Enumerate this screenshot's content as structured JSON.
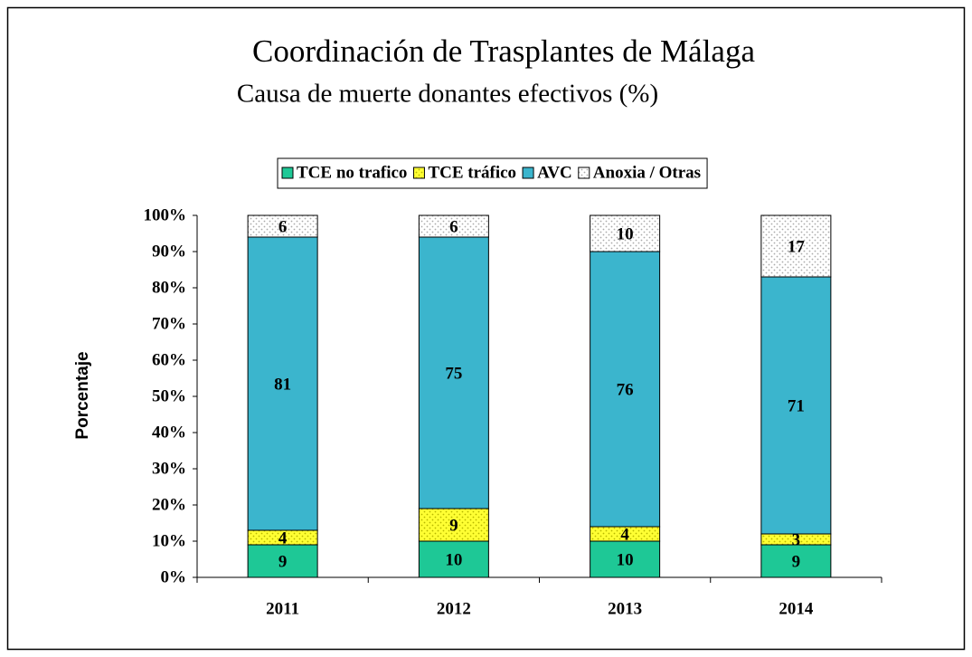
{
  "chart_data": {
    "type": "stacked_bar",
    "title": "Coordinación de Trasplantes de Málaga",
    "subtitle": "Causa de muerte donantes efectivos (%)",
    "y_label": "Porcentaje",
    "categories": [
      "2011",
      "2012",
      "2013",
      "2014"
    ],
    "series": [
      {
        "name": "TCE no trafico",
        "color": "#1ec896",
        "pattern": false,
        "values": [
          9,
          10,
          10,
          9
        ]
      },
      {
        "name": "TCE tráfico",
        "color": "#ffff33",
        "pattern": true,
        "values": [
          4,
          9,
          4,
          3
        ]
      },
      {
        "name": "AVC",
        "color": "#3bb5cd",
        "pattern": false,
        "values": [
          81,
          75,
          76,
          71
        ]
      },
      {
        "name": "Anoxia / Otras",
        "color": "#ffffff",
        "pattern": true,
        "values": [
          6,
          6,
          10,
          17
        ]
      }
    ],
    "ylim": [
      0,
      100
    ],
    "yticks": [
      {
        "value": 0,
        "label": "0%"
      },
      {
        "value": 10,
        "label": "10%"
      },
      {
        "value": 20,
        "label": "20%"
      },
      {
        "value": 30,
        "label": "30%"
      },
      {
        "value": 40,
        "label": "40%"
      },
      {
        "value": 50,
        "label": "50%"
      },
      {
        "value": 60,
        "label": "60%"
      },
      {
        "value": 70,
        "label": "70%"
      },
      {
        "value": 80,
        "label": "80%"
      },
      {
        "value": 90,
        "label": "90%"
      },
      {
        "value": 100,
        "label": "100%"
      }
    ],
    "legend": "top"
  }
}
